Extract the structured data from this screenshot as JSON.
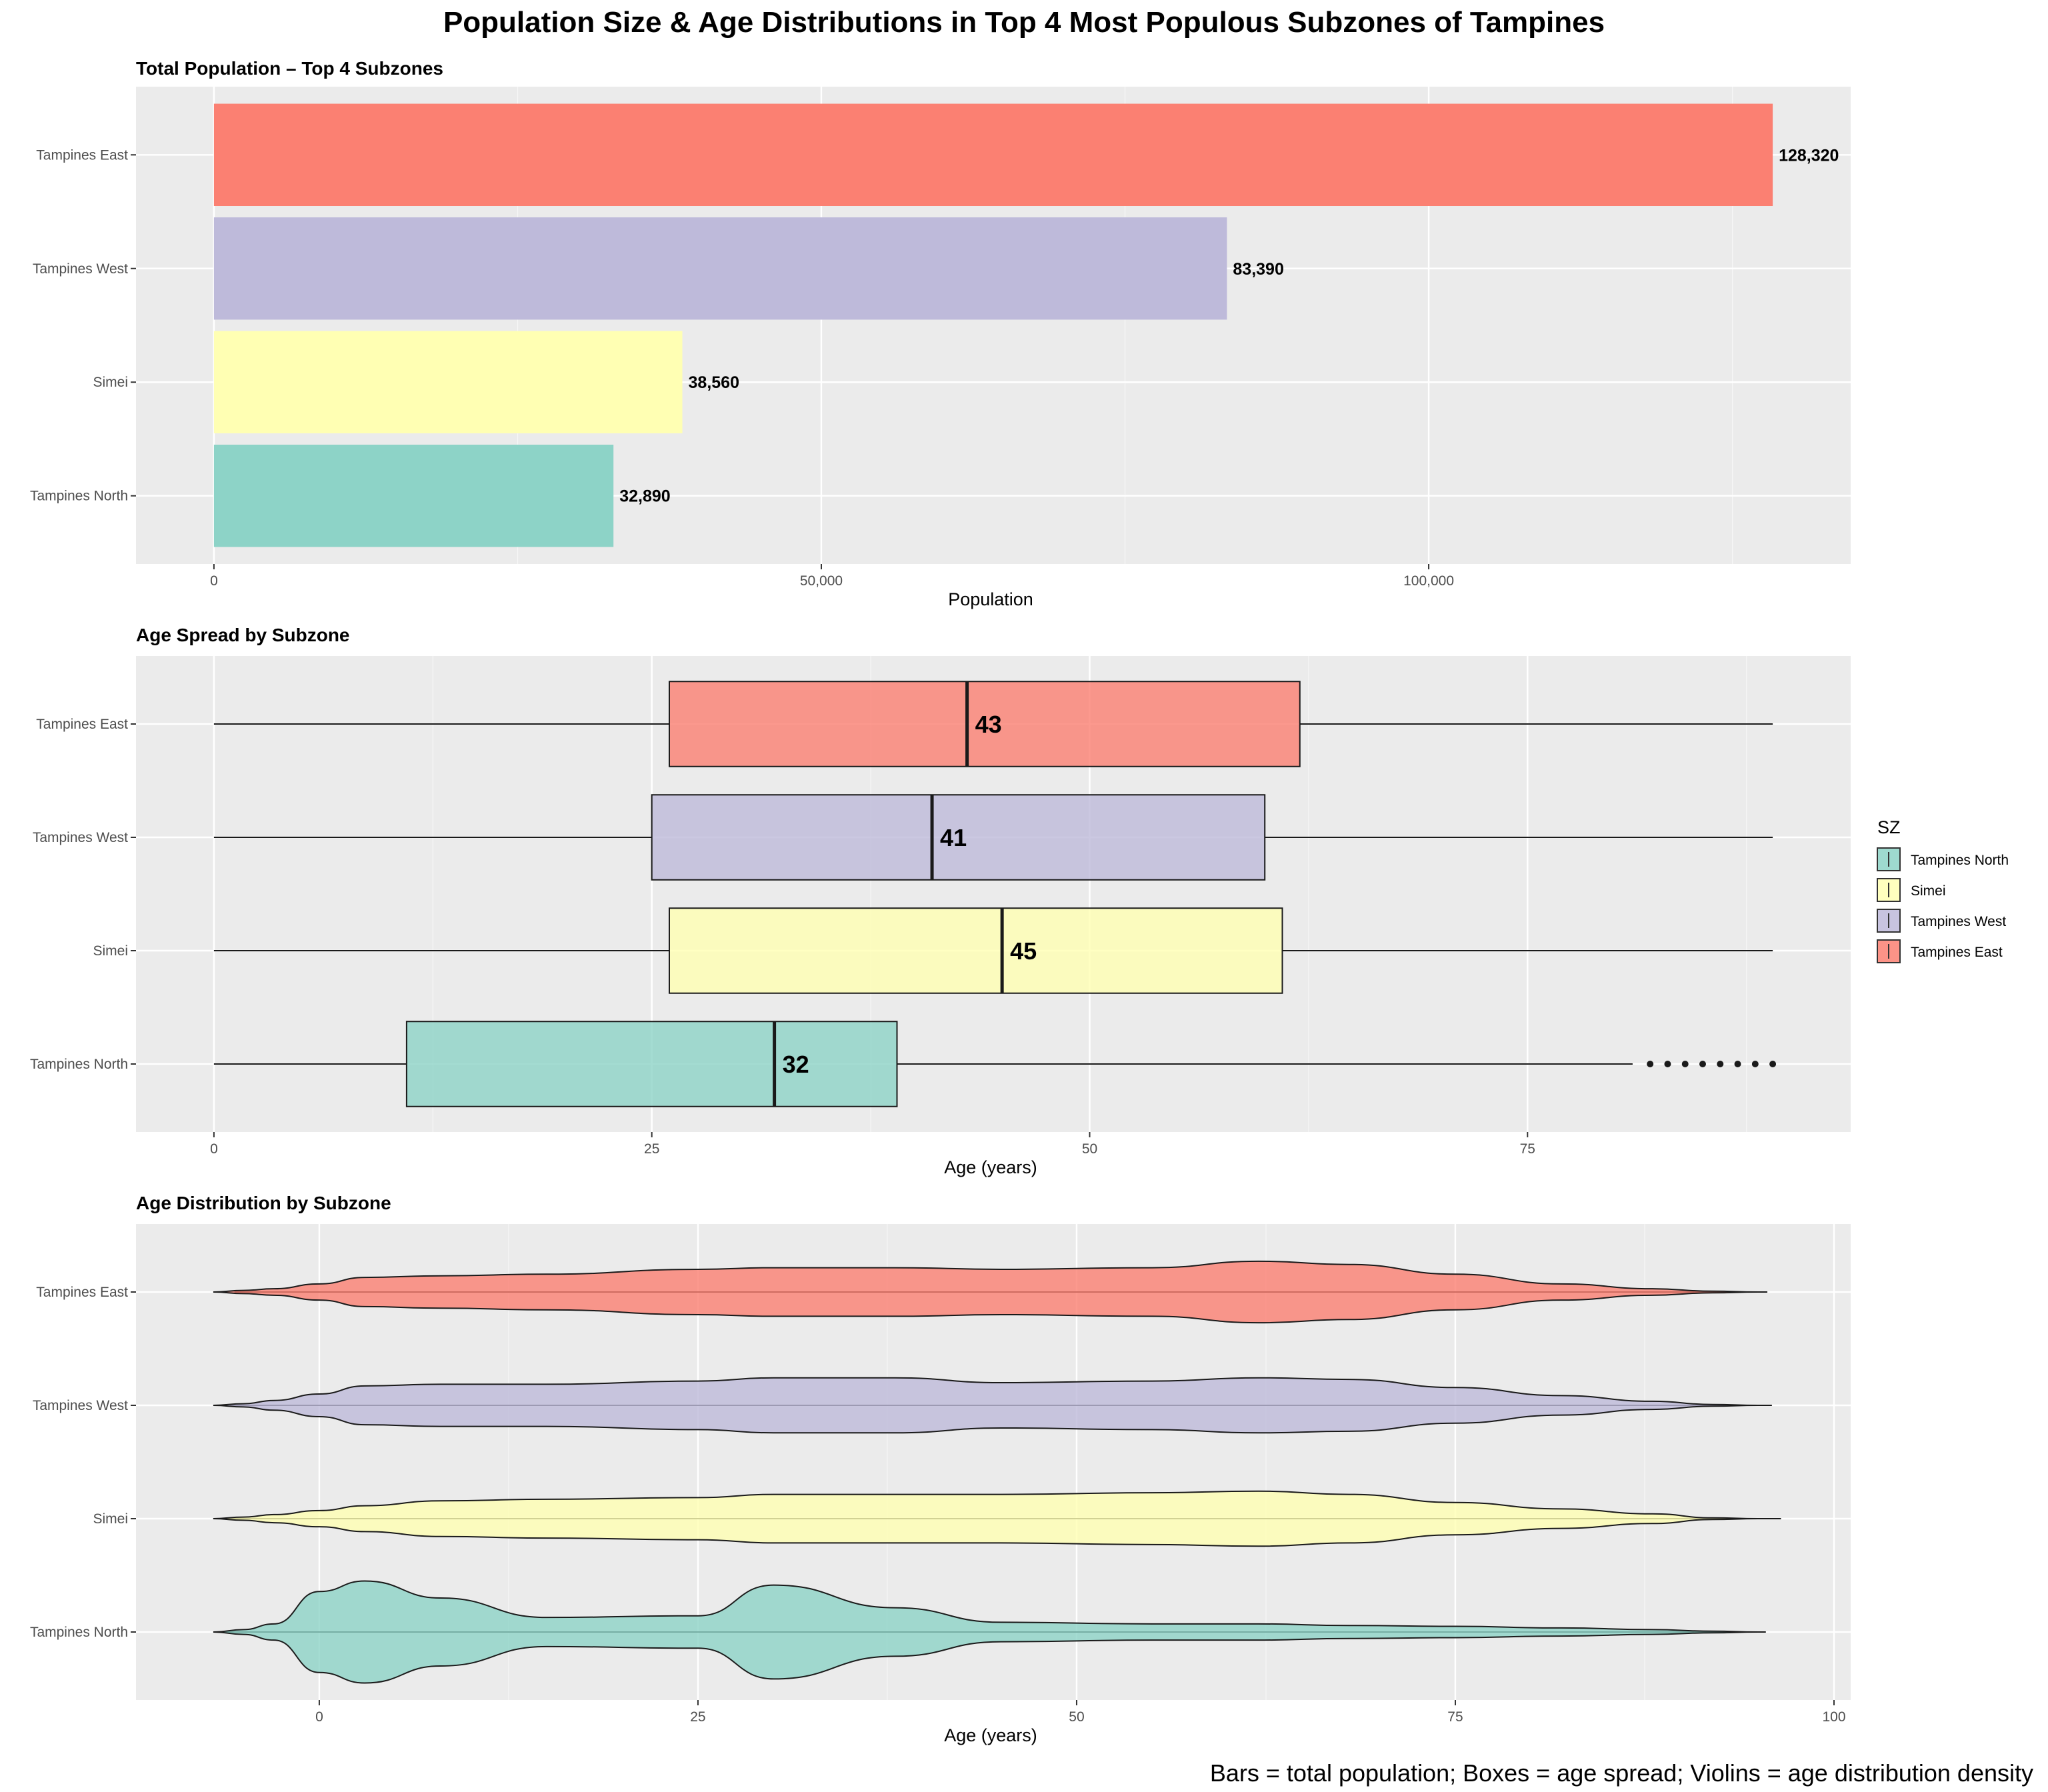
{
  "title": "Population Size & Age Distributions in Top 4 Most Populous Subzones of Tampines",
  "caption": "Bars = total population; Boxes = age spread; Violins = age distribution density",
  "colors": {
    "Tampines North": "#8DD3C7",
    "Simei": "#FFFFB3",
    "Tampines West": "#BEBADA",
    "Tampines East": "#FB8072",
    "panel_bg": "#EBEBEB",
    "grid": "#FFFFFF"
  },
  "legend": {
    "title": "SZ",
    "items": [
      "Tampines North",
      "Simei",
      "Tampines West",
      "Tampines East"
    ],
    "position": "right"
  },
  "chart_data": [
    {
      "type": "bar",
      "orientation": "horizontal",
      "title": "Total Population – Top 4 Subzones",
      "xlabel": "Population",
      "ylabel": "",
      "categories": [
        "Tampines East",
        "Tampines West",
        "Simei",
        "Tampines North"
      ],
      "values": [
        128320,
        83390,
        38560,
        32890
      ],
      "value_labels": [
        "128,320",
        "83,390",
        "38,560",
        "32,890"
      ],
      "xlim": [
        -6416,
        134736
      ],
      "xticks": [
        0,
        50000,
        100000
      ],
      "xtick_labels": [
        "0",
        "50,000",
        "100,000"
      ],
      "grid": true
    },
    {
      "type": "boxplot",
      "orientation": "horizontal",
      "title": "Age Spread by Subzone",
      "xlabel": "Age (years)",
      "ylabel": "",
      "categories": [
        "Tampines East",
        "Tampines West",
        "Simei",
        "Tampines North"
      ],
      "boxes": [
        {
          "name": "Tampines East",
          "min": 0,
          "q1": 26,
          "median": 43,
          "q3": 62,
          "max": 89,
          "outliers": []
        },
        {
          "name": "Tampines West",
          "min": 0,
          "q1": 25,
          "median": 41,
          "q3": 60,
          "max": 89,
          "outliers": []
        },
        {
          "name": "Simei",
          "min": 0,
          "q1": 26,
          "median": 45,
          "q3": 61,
          "max": 89,
          "outliers": []
        },
        {
          "name": "Tampines North",
          "min": 0,
          "q1": 11,
          "median": 32,
          "q3": 39,
          "max": 81,
          "outliers": [
            82,
            83,
            84,
            85,
            86,
            87,
            88,
            89
          ]
        }
      ],
      "median_labels": [
        "43",
        "41",
        "45",
        "32"
      ],
      "xlim": [
        -4.45,
        93.45
      ],
      "xticks": [
        0,
        25,
        50,
        75
      ],
      "xtick_labels": [
        "0",
        "25",
        "50",
        "75"
      ],
      "grid": true
    },
    {
      "type": "violin",
      "orientation": "horizontal",
      "title": "Age Distribution by Subzone",
      "xlabel": "Age (years)",
      "ylabel": "",
      "categories": [
        "Tampines East",
        "Tampines West",
        "Simei",
        "Tampines North"
      ],
      "ages": [
        -7,
        -5,
        -3,
        0,
        3,
        8,
        15,
        25,
        30,
        38,
        45,
        55,
        62,
        68,
        75,
        82,
        88,
        92,
        95
      ],
      "violins": [
        {
          "name": "Tampines East",
          "extent": [
            -5.6,
            95.6
          ],
          "half_width": [
            0,
            0.02,
            0.04,
            0.1,
            0.18,
            0.2,
            0.22,
            0.28,
            0.3,
            0.3,
            0.28,
            0.3,
            0.38,
            0.34,
            0.22,
            0.1,
            0.04,
            0.01,
            0
          ]
        },
        {
          "name": "Tampines West",
          "extent": [
            -5.9,
            95.9
          ],
          "half_width": [
            0,
            0.02,
            0.06,
            0.14,
            0.24,
            0.26,
            0.26,
            0.3,
            0.34,
            0.34,
            0.28,
            0.3,
            0.34,
            0.32,
            0.22,
            0.12,
            0.05,
            0.01,
            0
          ]
        },
        {
          "name": "Simei",
          "extent": [
            -7.0,
            96.5
          ],
          "half_width": [
            0,
            0.02,
            0.05,
            0.1,
            0.16,
            0.22,
            0.24,
            0.26,
            0.3,
            0.3,
            0.3,
            0.32,
            0.34,
            0.3,
            0.2,
            0.12,
            0.06,
            0.01,
            0
          ]
        },
        {
          "name": "Tampines North",
          "extent": [
            -6.5,
            95.5
          ],
          "half_width": [
            0,
            0.03,
            0.1,
            0.5,
            0.63,
            0.42,
            0.18,
            0.2,
            0.58,
            0.3,
            0.12,
            0.1,
            0.1,
            0.08,
            0.07,
            0.05,
            0.03,
            0.01,
            0
          ]
        }
      ],
      "xlim": [
        -12.1,
        101.1
      ],
      "xticks": [
        0,
        25,
        50,
        75,
        100
      ],
      "xtick_labels": [
        "0",
        "25",
        "50",
        "75",
        "100"
      ],
      "grid": true
    }
  ]
}
